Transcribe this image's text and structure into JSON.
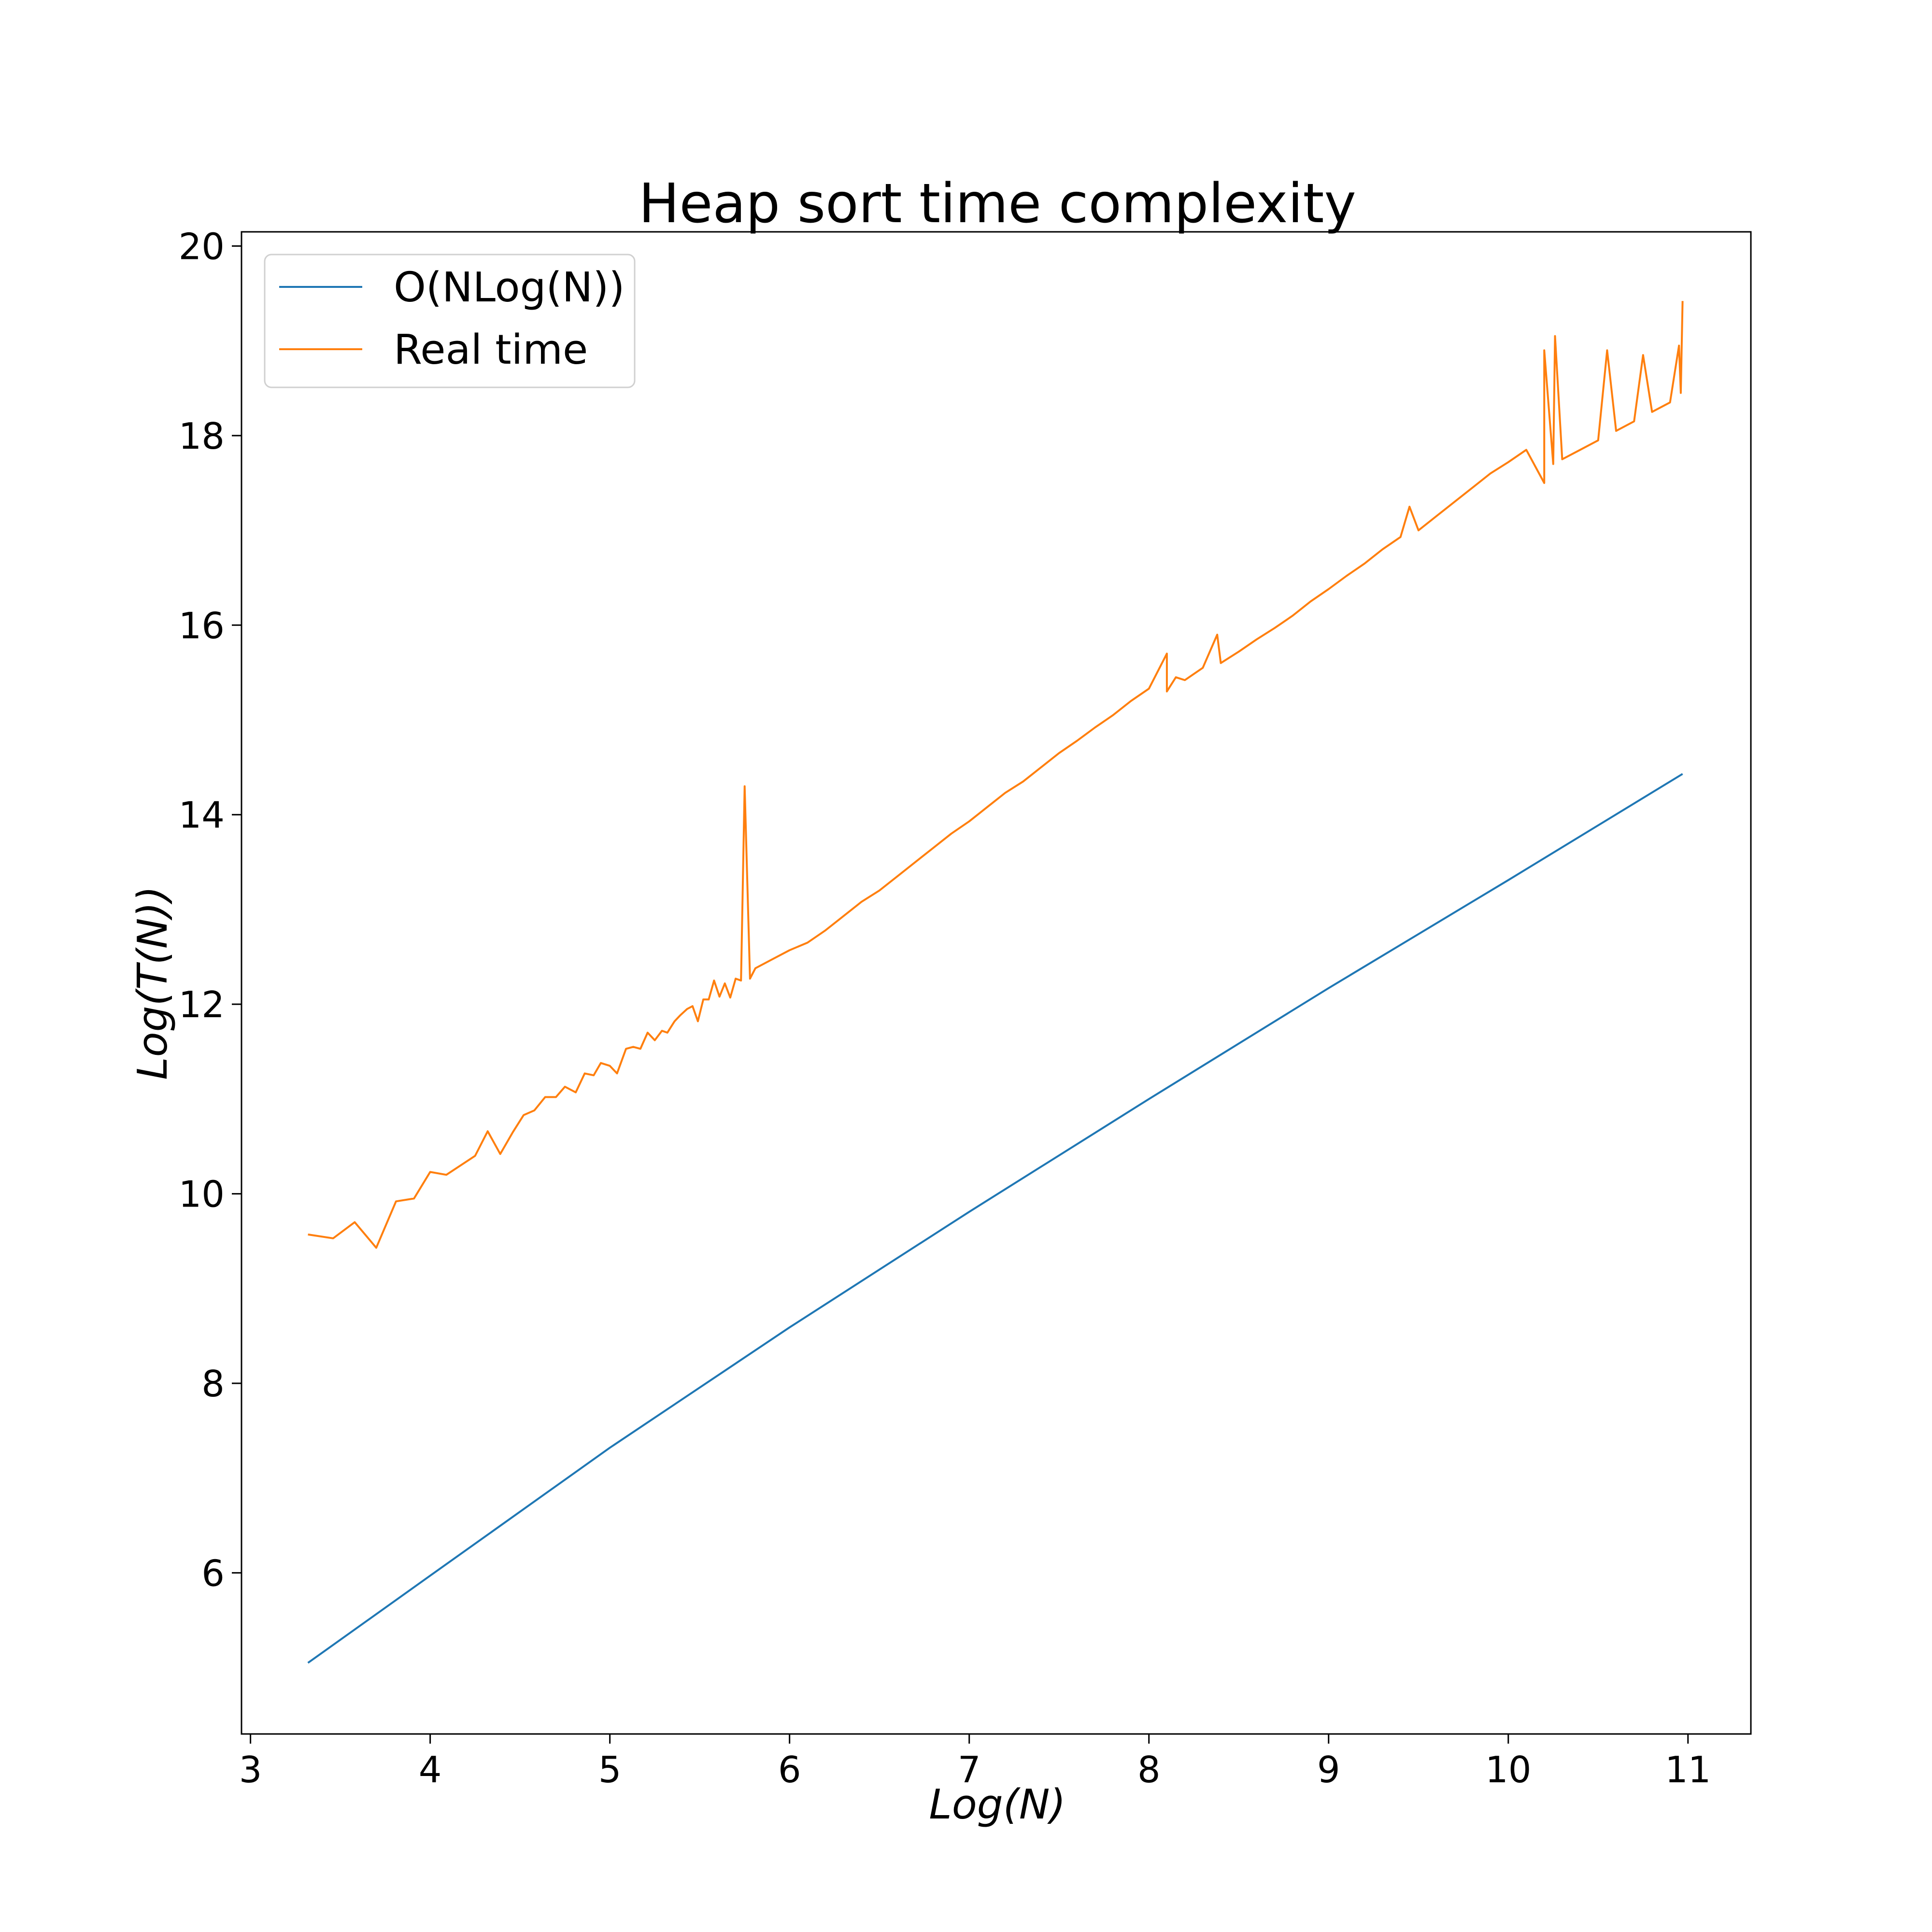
{
  "chart_data": {
    "type": "line",
    "title": "Heap sort time complexity",
    "xlabel": "Log(N)",
    "ylabel": "Log(T(N))",
    "xlim": [
      2.95,
      11.35
    ],
    "ylim": [
      4.3,
      20.15
    ],
    "xticks": [
      3,
      4,
      5,
      6,
      7,
      8,
      9,
      10,
      11
    ],
    "yticks": [
      6,
      8,
      10,
      12,
      14,
      16,
      18,
      20
    ],
    "grid": false,
    "legend_position": "top-left",
    "series": [
      {
        "name": "O(NLog(N))",
        "color": "#1f77b4",
        "x": [
          3.32,
          4,
          5,
          6,
          7,
          8,
          9,
          10,
          10.97
        ],
        "y": [
          5.05,
          5.97,
          7.32,
          8.59,
          9.81,
          11.0,
          12.17,
          13.31,
          14.43
        ]
      },
      {
        "name": "Real time",
        "color": "#ff7f0e",
        "x": [
          3.32,
          3.46,
          3.58,
          3.7,
          3.81,
          3.91,
          4.0,
          4.09,
          4.25,
          4.32,
          4.39,
          4.46,
          4.52,
          4.58,
          4.64,
          4.7,
          4.75,
          4.81,
          4.86,
          4.91,
          4.95,
          5.0,
          5.04,
          5.09,
          5.13,
          5.17,
          5.21,
          5.25,
          5.29,
          5.32,
          5.36,
          5.39,
          5.43,
          5.46,
          5.49,
          5.52,
          5.55,
          5.58,
          5.61,
          5.64,
          5.67,
          5.7,
          5.73,
          5.75,
          5.78,
          5.81,
          5.9,
          6.0,
          6.1,
          6.2,
          6.3,
          6.4,
          6.5,
          6.6,
          6.7,
          6.8,
          6.9,
          7.0,
          7.1,
          7.2,
          7.3,
          7.4,
          7.5,
          7.6,
          7.7,
          7.8,
          7.9,
          8.0,
          8.1,
          8.1,
          8.15,
          8.2,
          8.3,
          8.38,
          8.4,
          8.5,
          8.6,
          8.7,
          8.8,
          8.9,
          9.0,
          9.1,
          9.2,
          9.3,
          9.4,
          9.45,
          9.5,
          9.6,
          9.7,
          9.8,
          9.9,
          10.0,
          10.1,
          10.2,
          10.2,
          10.25,
          10.26,
          10.3,
          10.4,
          10.5,
          10.55,
          10.6,
          10.7,
          10.75,
          10.8,
          10.9,
          10.95,
          10.96,
          10.97
        ],
        "y": [
          9.57,
          9.53,
          9.7,
          9.43,
          9.92,
          9.95,
          10.23,
          10.2,
          10.4,
          10.66,
          10.42,
          10.65,
          10.83,
          10.88,
          11.02,
          11.02,
          11.13,
          11.07,
          11.27,
          11.25,
          11.38,
          11.35,
          11.27,
          11.53,
          11.55,
          11.53,
          11.7,
          11.62,
          11.72,
          11.7,
          11.82,
          11.88,
          11.95,
          11.98,
          11.82,
          12.05,
          12.05,
          12.25,
          12.08,
          12.22,
          12.07,
          12.27,
          12.25,
          14.3,
          12.27,
          12.38,
          12.47,
          12.57,
          12.65,
          12.78,
          12.93,
          13.08,
          13.2,
          13.35,
          13.5,
          13.65,
          13.8,
          13.93,
          14.08,
          14.23,
          14.35,
          14.5,
          14.65,
          14.78,
          14.92,
          15.05,
          15.2,
          15.33,
          15.7,
          15.3,
          15.45,
          15.42,
          15.55,
          15.9,
          15.6,
          15.72,
          15.85,
          15.97,
          16.1,
          16.25,
          16.38,
          16.52,
          16.65,
          16.8,
          16.93,
          17.25,
          17.0,
          17.15,
          17.3,
          17.45,
          17.6,
          17.72,
          17.85,
          17.5,
          18.9,
          17.7,
          19.05,
          17.75,
          17.85,
          17.95,
          18.9,
          18.05,
          18.15,
          18.85,
          18.25,
          18.35,
          18.95,
          18.45,
          19.42
        ]
      }
    ]
  }
}
